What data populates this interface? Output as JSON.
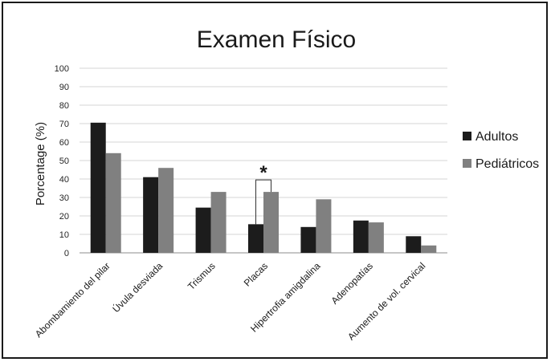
{
  "chart_data": {
    "type": "bar",
    "title": "Examen Físico",
    "ylabel": "Porcentage (%)",
    "xlabel": "",
    "ylim": [
      0,
      100
    ],
    "yticks": [
      0,
      10,
      20,
      30,
      40,
      50,
      60,
      70,
      80,
      90,
      100
    ],
    "grid": true,
    "legend": "right",
    "categories": [
      "Abombamiento del pilar",
      "Úvula desviada",
      "Trismus",
      "Placas",
      "Hipertrofia amigdalina",
      "Adenopatías",
      "Aumento de vol. cervical"
    ],
    "series": [
      {
        "name": "Adultos",
        "color": "#1c1c1c",
        "values": [
          70.5,
          41,
          24.5,
          15.5,
          14,
          17.5,
          9
        ]
      },
      {
        "name": "Pediátricos",
        "color": "#808080",
        "values": [
          54,
          46,
          33,
          33,
          29,
          16.5,
          4
        ]
      }
    ],
    "annotations": [
      {
        "text": "*",
        "category": "Placas",
        "type": "significance-bracket"
      }
    ]
  }
}
